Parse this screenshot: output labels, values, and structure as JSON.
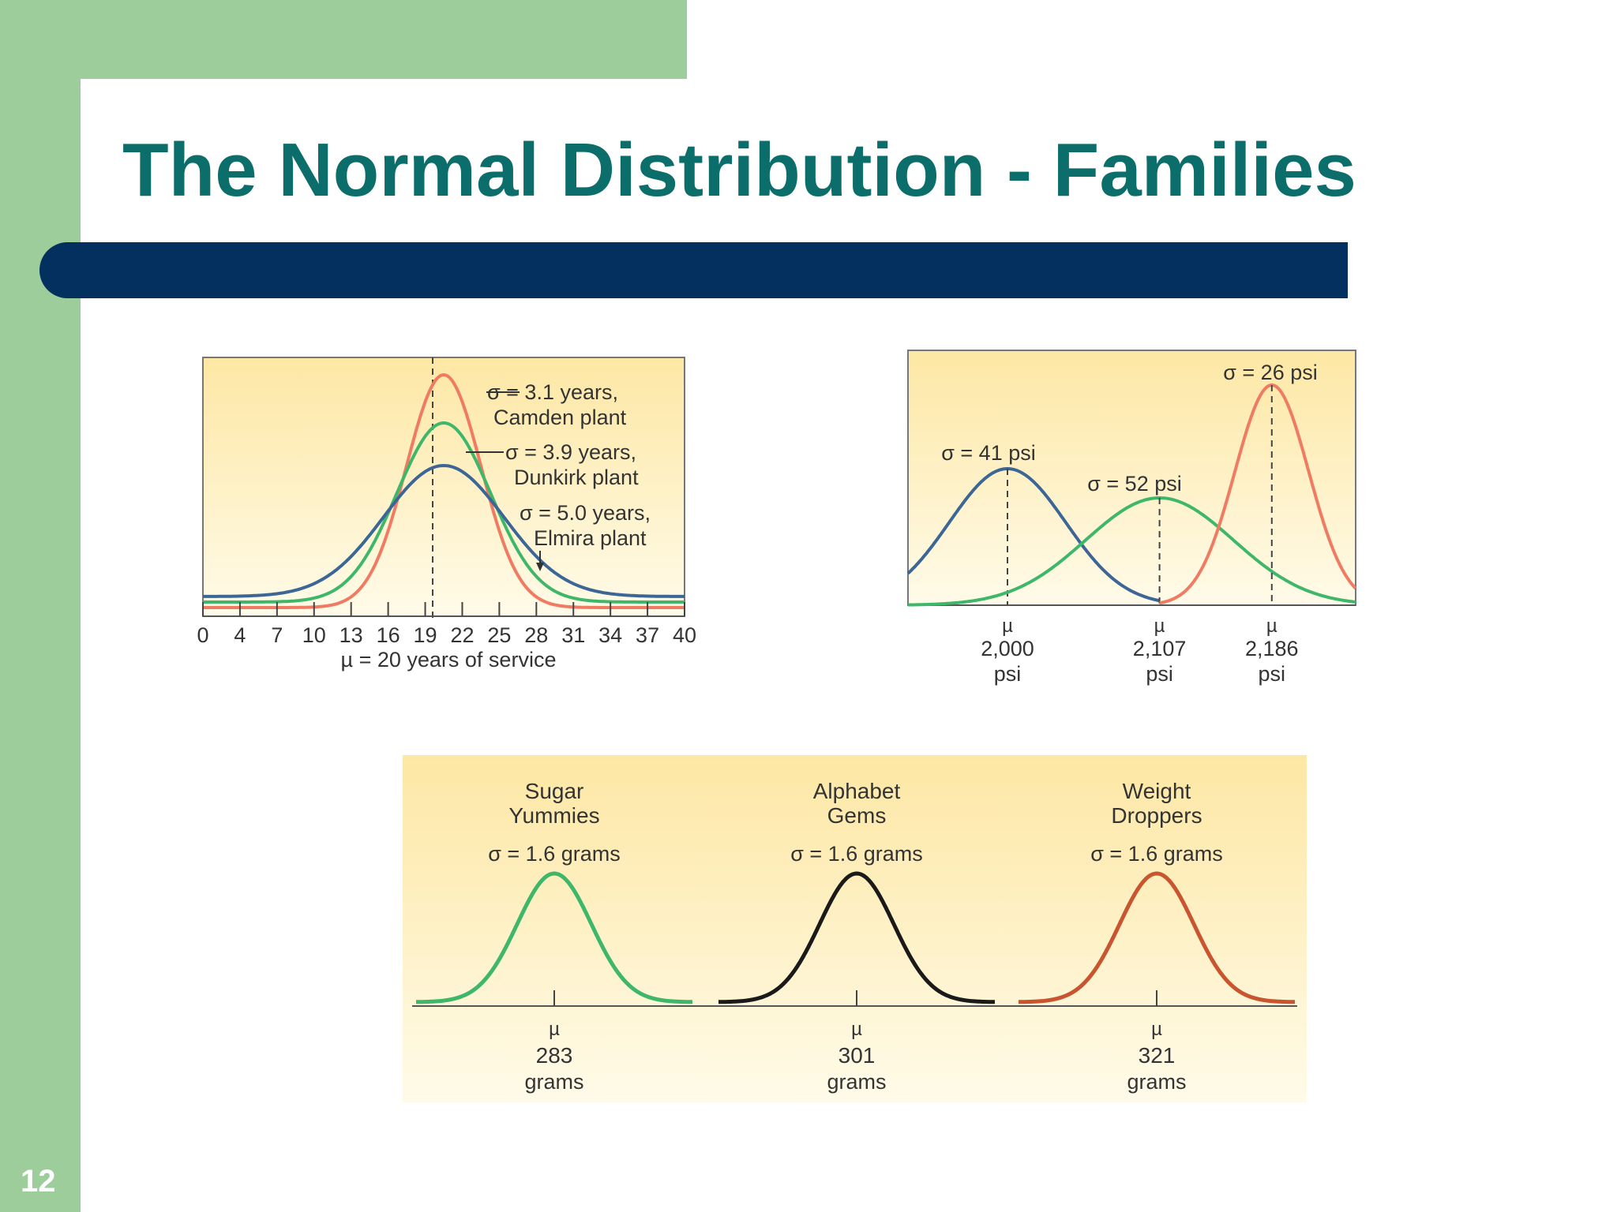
{
  "slide": {
    "title": "The Normal Distribution - Families",
    "page_number": "12",
    "colors": {
      "sidebar": "#9dcd9b",
      "title": "#0c6e6b",
      "bar": "#03305f",
      "panel_light": "#fffbe9",
      "panel_dark": "#fde7a4"
    }
  },
  "chart_data": [
    {
      "type": "line",
      "ticks": [
        "0",
        "4",
        "7",
        "10",
        "13",
        "16",
        "19",
        "22",
        "25",
        "28",
        "31",
        "34",
        "37",
        "40"
      ],
      "xlim": [
        0,
        40
      ],
      "xlabel": "µ = 20 years of service",
      "mean": 20,
      "series": [
        {
          "sigma": 3.1,
          "labels": [
            "σ = 3.1 years,",
            "Camden plant"
          ],
          "color": "#ef7b63"
        },
        {
          "sigma": 3.9,
          "labels": [
            "σ = 3.9 years,",
            "Dunkirk plant"
          ],
          "color": "#3fb76b"
        },
        {
          "sigma": 5.0,
          "labels": [
            "σ = 5.0 years,",
            "Elmira plant"
          ],
          "color": "#3c6696"
        }
      ]
    },
    {
      "type": "line",
      "unit": "psi",
      "series": [
        {
          "mean": 2000,
          "mean_label": "2,000",
          "sigma": 41,
          "label": "σ = 41 psi",
          "color": "#3c6696"
        },
        {
          "mean": 2107,
          "mean_label": "2,107",
          "sigma": 52,
          "label": "σ = 52 psi",
          "color": "#3fb76b"
        },
        {
          "mean": 2186,
          "mean_label": "2,186",
          "sigma": 26,
          "label": "σ = 26 psi",
          "color": "#ef7b63"
        }
      ]
    },
    {
      "type": "line",
      "unit": "grams",
      "series": [
        {
          "name_lines": [
            "Sugar",
            "Yummies"
          ],
          "label": "σ = 1.6 grams",
          "mean": 283,
          "sigma": 1.6,
          "color": "#3fb76b"
        },
        {
          "name_lines": [
            "Alphabet",
            "Gems"
          ],
          "label": "σ = 1.6 grams",
          "mean": 301,
          "sigma": 1.6,
          "color": "#1a1a1a"
        },
        {
          "name_lines": [
            "Weight",
            "Droppers"
          ],
          "label": "σ = 1.6 grams",
          "mean": 321,
          "sigma": 1.6,
          "color": "#c8552f"
        }
      ]
    }
  ],
  "mu_symbol": "µ"
}
